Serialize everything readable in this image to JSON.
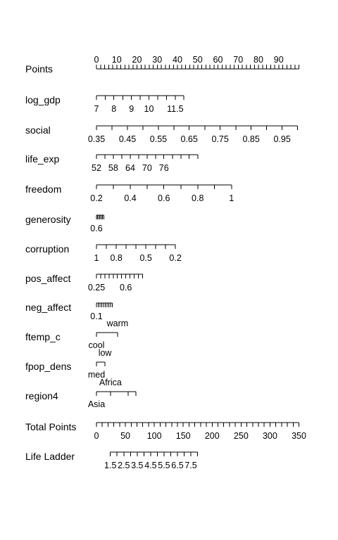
{
  "chart_data": {
    "type": "nomogram",
    "title": "",
    "axes": [
      {
        "name": "Points",
        "ticks": [
          {
            "value": 0,
            "label": "0"
          },
          {
            "value": 10,
            "label": "10"
          },
          {
            "value": 20,
            "label": "20"
          },
          {
            "value": 30,
            "label": "30"
          },
          {
            "value": 40,
            "label": "40"
          },
          {
            "value": 50,
            "label": "50"
          },
          {
            "value": 60,
            "label": "60"
          },
          {
            "value": 70,
            "label": "70"
          },
          {
            "value": 80,
            "label": "80"
          },
          {
            "value": 90,
            "label": "90"
          }
        ],
        "range": [
          0,
          100
        ]
      },
      {
        "name": "log_gdp",
        "ticks": [
          {
            "value": 7,
            "label": "7",
            "points": 0
          },
          {
            "value": 7.5,
            "label": "",
            "points": 4.3
          },
          {
            "value": 8,
            "label": "8",
            "points": 8.6
          },
          {
            "value": 8.5,
            "label": "",
            "points": 13.0
          },
          {
            "value": 9,
            "label": "9",
            "points": 17.3
          },
          {
            "value": 9.5,
            "label": "",
            "points": 21.6
          },
          {
            "value": 10,
            "label": "10",
            "points": 25.9
          },
          {
            "value": 10.5,
            "label": "",
            "points": 30.2
          },
          {
            "value": 11,
            "label": "",
            "points": 34.6
          },
          {
            "value": 11.5,
            "label": "11.5",
            "points": 38.9
          },
          {
            "value": 12,
            "label": "",
            "points": 43.2
          }
        ]
      },
      {
        "name": "social",
        "ticks": [
          {
            "value": 0.35,
            "label": "0.35",
            "points": 0
          },
          {
            "value": 0.4,
            "label": "",
            "points": 7.7
          },
          {
            "value": 0.45,
            "label": "0.45",
            "points": 15.3
          },
          {
            "value": 0.5,
            "label": "",
            "points": 22.9
          },
          {
            "value": 0.55,
            "label": "0.55",
            "points": 30.6
          },
          {
            "value": 0.6,
            "label": "",
            "points": 38.2
          },
          {
            "value": 0.65,
            "label": "0.65",
            "points": 45.8
          },
          {
            "value": 0.7,
            "label": "",
            "points": 53.5
          },
          {
            "value": 0.75,
            "label": "0.75",
            "points": 61.1
          },
          {
            "value": 0.8,
            "label": "",
            "points": 68.8
          },
          {
            "value": 0.85,
            "label": "0.85",
            "points": 76.4
          },
          {
            "value": 0.9,
            "label": "",
            "points": 84.0
          },
          {
            "value": 0.95,
            "label": "0.95",
            "points": 91.7
          },
          {
            "value": 1.0,
            "label": "",
            "points": 99.3
          }
        ]
      },
      {
        "name": "life_exp",
        "ticks": [
          {
            "value": 52,
            "label": "52",
            "points": 0
          },
          {
            "value": 55,
            "label": "",
            "points": 4.2
          },
          {
            "value": 58,
            "label": "58",
            "points": 8.3
          },
          {
            "value": 61,
            "label": "",
            "points": 12.5
          },
          {
            "value": 64,
            "label": "64",
            "points": 16.7
          },
          {
            "value": 67,
            "label": "",
            "points": 20.8
          },
          {
            "value": 70,
            "label": "70",
            "points": 25.0
          },
          {
            "value": 73,
            "label": "",
            "points": 29.2
          },
          {
            "value": 76,
            "label": "76",
            "points": 33.3
          },
          {
            "value": 79,
            "label": "",
            "points": 37.5
          },
          {
            "value": 82,
            "label": "",
            "points": 41.7
          },
          {
            "value": 85,
            "label": "",
            "points": 45.8
          },
          {
            "value": 88,
            "label": "",
            "points": 50.0
          }
        ]
      },
      {
        "name": "freedom",
        "ticks": [
          {
            "value": 0.2,
            "label": "0.2",
            "points": 0
          },
          {
            "value": 0.3,
            "label": "",
            "points": 8.3
          },
          {
            "value": 0.4,
            "label": "0.4",
            "points": 16.7
          },
          {
            "value": 0.5,
            "label": "",
            "points": 25.0
          },
          {
            "value": 0.6,
            "label": "0.6",
            "points": 33.3
          },
          {
            "value": 0.7,
            "label": "",
            "points": 41.7
          },
          {
            "value": 0.8,
            "label": "0.8",
            "points": 50.0
          },
          {
            "value": 0.9,
            "label": "",
            "points": 58.3
          },
          {
            "value": 1.0,
            "label": "1",
            "points": 66.7
          }
        ]
      },
      {
        "name": "generosity",
        "ticks": [
          {
            "value": 0.6,
            "label": "0.6",
            "points": 0
          },
          {
            "value": 0.5,
            "label": "",
            "points": 0.6
          },
          {
            "value": 0.4,
            "label": "",
            "points": 1.2
          },
          {
            "value": 0.3,
            "label": "",
            "points": 1.8
          },
          {
            "value": 0.2,
            "label": "",
            "points": 2.4
          },
          {
            "value": 0.1,
            "label": "",
            "points": 3.0
          },
          {
            "value": 0.0,
            "label": "",
            "points": 3.6
          }
        ]
      },
      {
        "name": "corruption",
        "ticks": [
          {
            "value": 1.0,
            "label": "1",
            "points": 0
          },
          {
            "value": 0.9,
            "label": "",
            "points": 4.9
          },
          {
            "value": 0.8,
            "label": "0.8",
            "points": 9.8
          },
          {
            "value": 0.7,
            "label": "",
            "points": 14.6
          },
          {
            "value": 0.6,
            "label": "",
            "points": 19.5
          },
          {
            "value": 0.5,
            "label": "0.5",
            "points": 24.4
          },
          {
            "value": 0.4,
            "label": "",
            "points": 29.3
          },
          {
            "value": 0.3,
            "label": "",
            "points": 34.1
          },
          {
            "value": 0.2,
            "label": "0.2",
            "points": 39.0
          }
        ]
      },
      {
        "name": "pos_affect",
        "ticks": [
          {
            "value": 0.25,
            "label": "0.25",
            "points": 0
          },
          {
            "value": 0.3,
            "label": "",
            "points": 2.1
          },
          {
            "value": 0.35,
            "label": "",
            "points": 4.1
          },
          {
            "value": 0.4,
            "label": "",
            "points": 6.2
          },
          {
            "value": 0.45,
            "label": "",
            "points": 8.3
          },
          {
            "value": 0.5,
            "label": "",
            "points": 10.3
          },
          {
            "value": 0.55,
            "label": "",
            "points": 12.4
          },
          {
            "value": 0.6,
            "label": "0.6",
            "points": 14.5
          },
          {
            "value": 0.65,
            "label": "",
            "points": 16.6
          },
          {
            "value": 0.7,
            "label": "",
            "points": 18.6
          },
          {
            "value": 0.75,
            "label": "",
            "points": 20.7
          },
          {
            "value": 0.8,
            "label": "",
            "points": 22.8
          }
        ]
      },
      {
        "name": "neg_affect",
        "ticks": [
          {
            "value": 0.1,
            "label": "0.1",
            "points": 0
          },
          {
            "value": 0.15,
            "label": "",
            "points": 0.9
          },
          {
            "value": 0.2,
            "label": "",
            "points": 1.7
          },
          {
            "value": 0.25,
            "label": "",
            "points": 2.6
          },
          {
            "value": 0.3,
            "label": "",
            "points": 3.5
          },
          {
            "value": 0.35,
            "label": "",
            "points": 4.3
          },
          {
            "value": 0.4,
            "label": "",
            "points": 5.2
          },
          {
            "value": 0.45,
            "label": "",
            "points": 6.1
          },
          {
            "value": 0.5,
            "label": "",
            "points": 7.0
          },
          {
            "value": 0.55,
            "label": "",
            "points": 7.8
          }
        ]
      },
      {
        "name": "ftemp_c",
        "ticks": [
          {
            "value": "cool",
            "label": "cool",
            "points": 0,
            "label_side": "below"
          },
          {
            "value": "warm",
            "label": "warm",
            "points": 10.4,
            "label_side": "above"
          }
        ]
      },
      {
        "name": "fpop_dens",
        "ticks": [
          {
            "value": "med",
            "label": "med",
            "points": 0,
            "label_side": "below"
          },
          {
            "value": "low",
            "label": "low",
            "points": 4.2,
            "label_side": "above"
          }
        ]
      },
      {
        "name": "region4",
        "ticks": [
          {
            "value": "Asia",
            "label": "Asia",
            "points": 0,
            "label_side": "below"
          },
          {
            "value": "Africa",
            "label": "Africa",
            "points": 6.9,
            "label_side": "above"
          },
          {
            "value": "",
            "label": "",
            "points": 15.6,
            "label_side": "none"
          },
          {
            "value": "",
            "label": "",
            "points": 19.4,
            "label_side": "none"
          }
        ]
      },
      {
        "name": "Total Points",
        "ticks": [
          {
            "value": 0,
            "label": "0"
          },
          {
            "value": 50,
            "label": "50"
          },
          {
            "value": 100,
            "label": "100"
          },
          {
            "value": 150,
            "label": "150"
          },
          {
            "value": 200,
            "label": "200"
          },
          {
            "value": 250,
            "label": "250"
          },
          {
            "value": 300,
            "label": "300"
          },
          {
            "value": 350,
            "label": "350"
          }
        ],
        "range": [
          0,
          350
        ]
      },
      {
        "name": "Life Ladder",
        "ticks": [
          {
            "value": 1.5,
            "label": "1.5",
            "total_points": 24
          },
          {
            "value": 2.0,
            "label": "",
            "total_points": 35.6
          },
          {
            "value": 2.5,
            "label": "2.5",
            "total_points": 47.2
          },
          {
            "value": 3.0,
            "label": "",
            "total_points": 58.8
          },
          {
            "value": 3.5,
            "label": "3.5",
            "total_points": 70.4
          },
          {
            "value": 4.0,
            "label": "",
            "total_points": 82.0
          },
          {
            "value": 4.5,
            "label": "4.5",
            "total_points": 93.6
          },
          {
            "value": 5.0,
            "label": "",
            "total_points": 105.2
          },
          {
            "value": 5.5,
            "label": "5.5",
            "total_points": 116.8
          },
          {
            "value": 6.0,
            "label": "",
            "total_points": 128.4
          },
          {
            "value": 6.5,
            "label": "6.5",
            "total_points": 140.0
          },
          {
            "value": 7.0,
            "label": "",
            "total_points": 151.6
          },
          {
            "value": 7.5,
            "label": "7.5",
            "total_points": 163.2
          },
          {
            "value": 8.0,
            "label": "",
            "total_points": 174.8
          }
        ]
      }
    ]
  }
}
